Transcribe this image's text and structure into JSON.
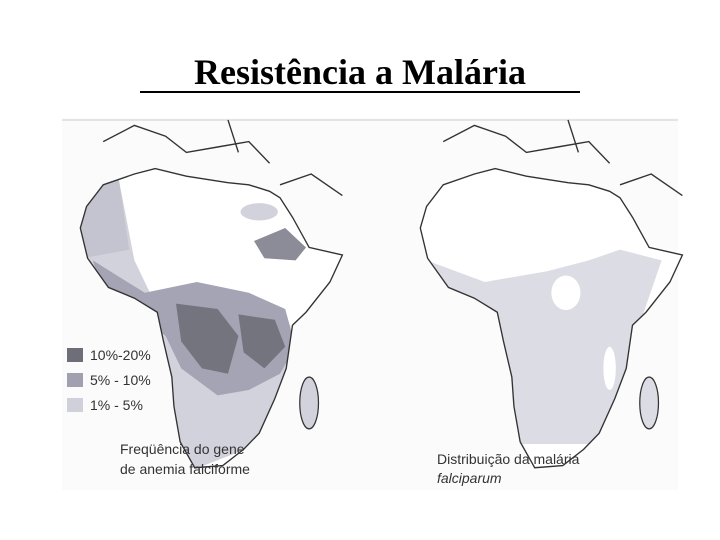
{
  "title": "Resistência a Malária",
  "left_map": {
    "legend": [
      "10%-20%",
      "5% - 10%",
      "1% - 5%"
    ],
    "caption": [
      "Freqüência do gene",
      "de anemia falciforme"
    ]
  },
  "right_map": {
    "caption": [
      "Distribuição da malária",
      "falciparum"
    ]
  }
}
